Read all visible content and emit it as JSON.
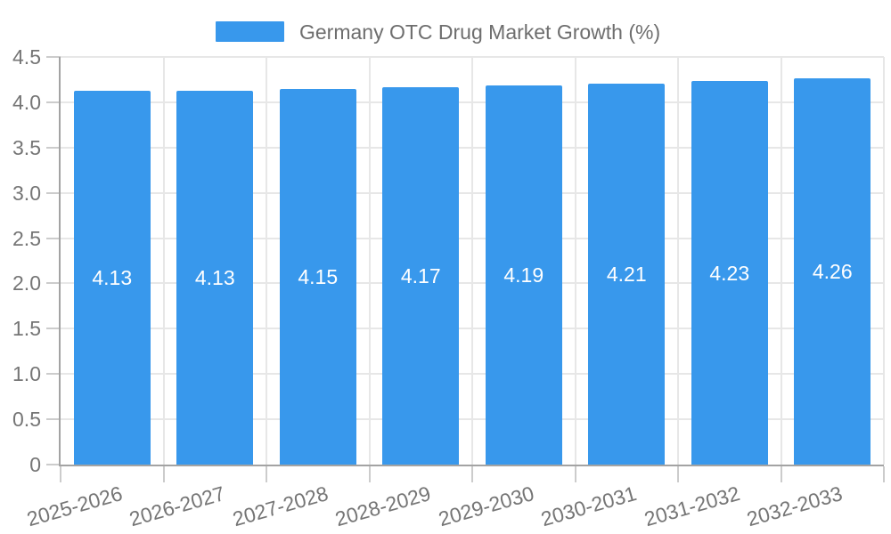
{
  "chart_data": {
    "type": "bar",
    "title": "Germany OTC Drug Market Growth (%)",
    "legend_entries": [
      "Germany OTC Drug Market Growth (%)"
    ],
    "legend_position": "top-center",
    "categories": [
      "2025-2026",
      "2026-2027",
      "2027-2028",
      "2028-2029",
      "2029-2030",
      "2030-2031",
      "2031-2032",
      "2032-2033"
    ],
    "values": [
      4.13,
      4.13,
      4.15,
      4.17,
      4.19,
      4.21,
      4.23,
      4.26
    ],
    "value_labels": [
      "4.13",
      "4.13",
      "4.15",
      "4.17",
      "4.19",
      "4.21",
      "4.23",
      "4.26"
    ],
    "xlabel": "",
    "ylabel": "",
    "ylim": [
      0,
      4.5
    ],
    "ytick_step": 0.5,
    "ytick_labels": [
      "0",
      "0.5",
      "1.0",
      "1.5",
      "2.0",
      "2.5",
      "3.0",
      "3.5",
      "4.0",
      "4.5"
    ],
    "grid": true,
    "x_label_rotation_deg": -16,
    "colors": {
      "bar": "#3898EC",
      "value_label": "#FFFFFF",
      "grid_line": "#E7E7E7",
      "axis_spine": "#A3A3A3",
      "tick_mark": "#CCCCCC",
      "tick_label": "#757575",
      "legend_text": "#6E6E6E"
    }
  }
}
